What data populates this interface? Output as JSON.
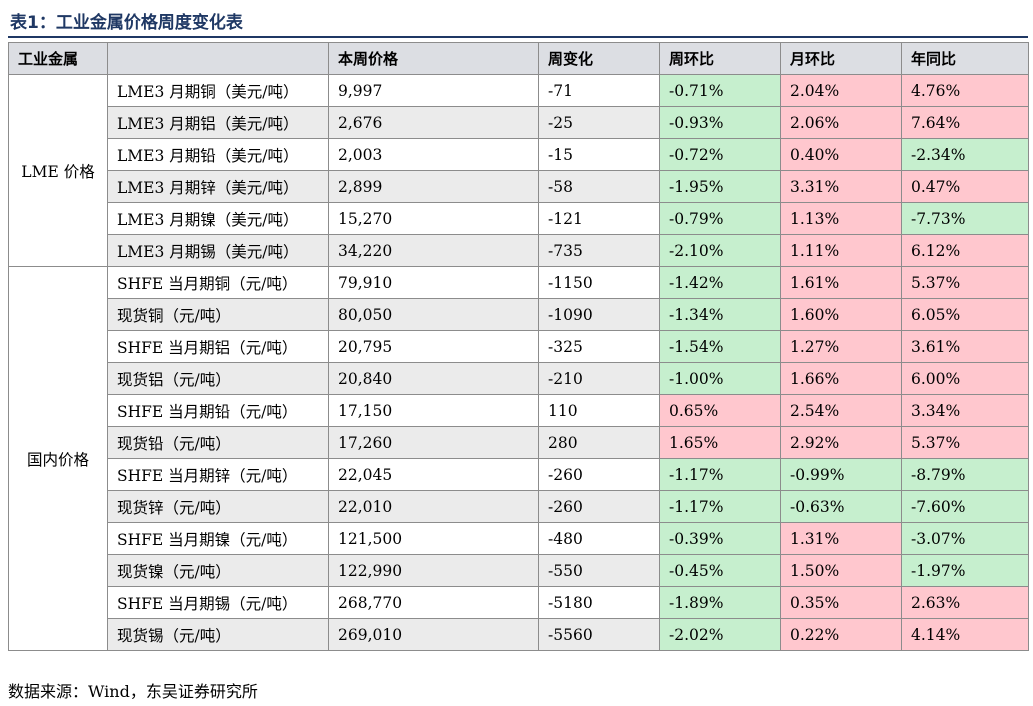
{
  "title": "表1：工业金属价格周度变化表",
  "header": [
    "工业金属",
    "",
    "本周价格",
    "周变化",
    "周环比",
    "月环比",
    "年同比"
  ],
  "groups": [
    {
      "label": "LME 价格",
      "rows": [
        {
          "name": "LME3 月期铜（美元/吨）",
          "price": "9,997",
          "change": "-71",
          "wow": "-0.71%",
          "mom": "2.04%",
          "yoy": "4.76%"
        },
        {
          "name": "LME3 月期铝（美元/吨）",
          "price": "2,676",
          "change": "-25",
          "wow": "-0.93%",
          "mom": "2.06%",
          "yoy": "7.64%"
        },
        {
          "name": "LME3 月期铅（美元/吨）",
          "price": "2,003",
          "change": "-15",
          "wow": "-0.72%",
          "mom": "0.40%",
          "yoy": "-2.34%"
        },
        {
          "name": "LME3 月期锌（美元/吨）",
          "price": "2,899",
          "change": "-58",
          "wow": "-1.95%",
          "mom": "3.31%",
          "yoy": "0.47%"
        },
        {
          "name": "LME3 月期镍（美元/吨）",
          "price": "15,270",
          "change": "-121",
          "wow": "-0.79%",
          "mom": "1.13%",
          "yoy": "-7.73%"
        },
        {
          "name": "LME3 月期锡（美元/吨）",
          "price": "34,220",
          "change": "-735",
          "wow": "-2.10%",
          "mom": "1.11%",
          "yoy": "6.12%"
        }
      ]
    },
    {
      "label": "国内价格",
      "rows": [
        {
          "name": "SHFE 当月期铜（元/吨）",
          "price": "79,910",
          "change": "-1150",
          "wow": "-1.42%",
          "mom": "1.61%",
          "yoy": "5.37%"
        },
        {
          "name": "现货铜（元/吨）",
          "price": "80,050",
          "change": "-1090",
          "wow": "-1.34%",
          "mom": "1.60%",
          "yoy": "6.05%"
        },
        {
          "name": "SHFE 当月期铝（元/吨）",
          "price": "20,795",
          "change": "-325",
          "wow": "-1.54%",
          "mom": "1.27%",
          "yoy": "3.61%"
        },
        {
          "name": "现货铝（元/吨）",
          "price": "20,840",
          "change": "-210",
          "wow": "-1.00%",
          "mom": "1.66%",
          "yoy": "6.00%"
        },
        {
          "name": "SHFE 当月期铅（元/吨）",
          "price": "17,150",
          "change": "110",
          "wow": "0.65%",
          "mom": "2.54%",
          "yoy": "3.34%"
        },
        {
          "name": "现货铅（元/吨）",
          "price": "17,260",
          "change": "280",
          "wow": "1.65%",
          "mom": "2.92%",
          "yoy": "5.37%"
        },
        {
          "name": "SHFE 当月期锌（元/吨）",
          "price": "22,045",
          "change": "-260",
          "wow": "-1.17%",
          "mom": "-0.99%",
          "yoy": "-8.79%"
        },
        {
          "name": "现货锌（元/吨）",
          "price": "22,010",
          "change": "-260",
          "wow": "-1.17%",
          "mom": "-0.63%",
          "yoy": "-7.60%"
        },
        {
          "name": "SHFE 当月期镍（元/吨）",
          "price": "121,500",
          "change": "-480",
          "wow": "-0.39%",
          "mom": "1.31%",
          "yoy": "-3.07%"
        },
        {
          "name": "现货镍（元/吨）",
          "price": "122,990",
          "change": "-550",
          "wow": "-0.45%",
          "mom": "1.50%",
          "yoy": "-1.97%"
        },
        {
          "name": "SHFE 当月期锡（元/吨）",
          "price": "268,770",
          "change": "-5180",
          "wow": "-1.89%",
          "mom": "0.35%",
          "yoy": "2.63%"
        },
        {
          "name": "现货锡（元/吨）",
          "price": "269,010",
          "change": "-5560",
          "wow": "-2.02%",
          "mom": "0.22%",
          "yoy": "4.14%"
        }
      ]
    }
  ],
  "source": "数据来源：Wind，东吴证券研究所",
  "colors": {
    "title": "#1f3864",
    "header_bg": "#dcdee3",
    "positive_bg": "#ffc7ce",
    "negative_bg": "#c6efce",
    "stripe_bg": "#ebebeb"
  }
}
